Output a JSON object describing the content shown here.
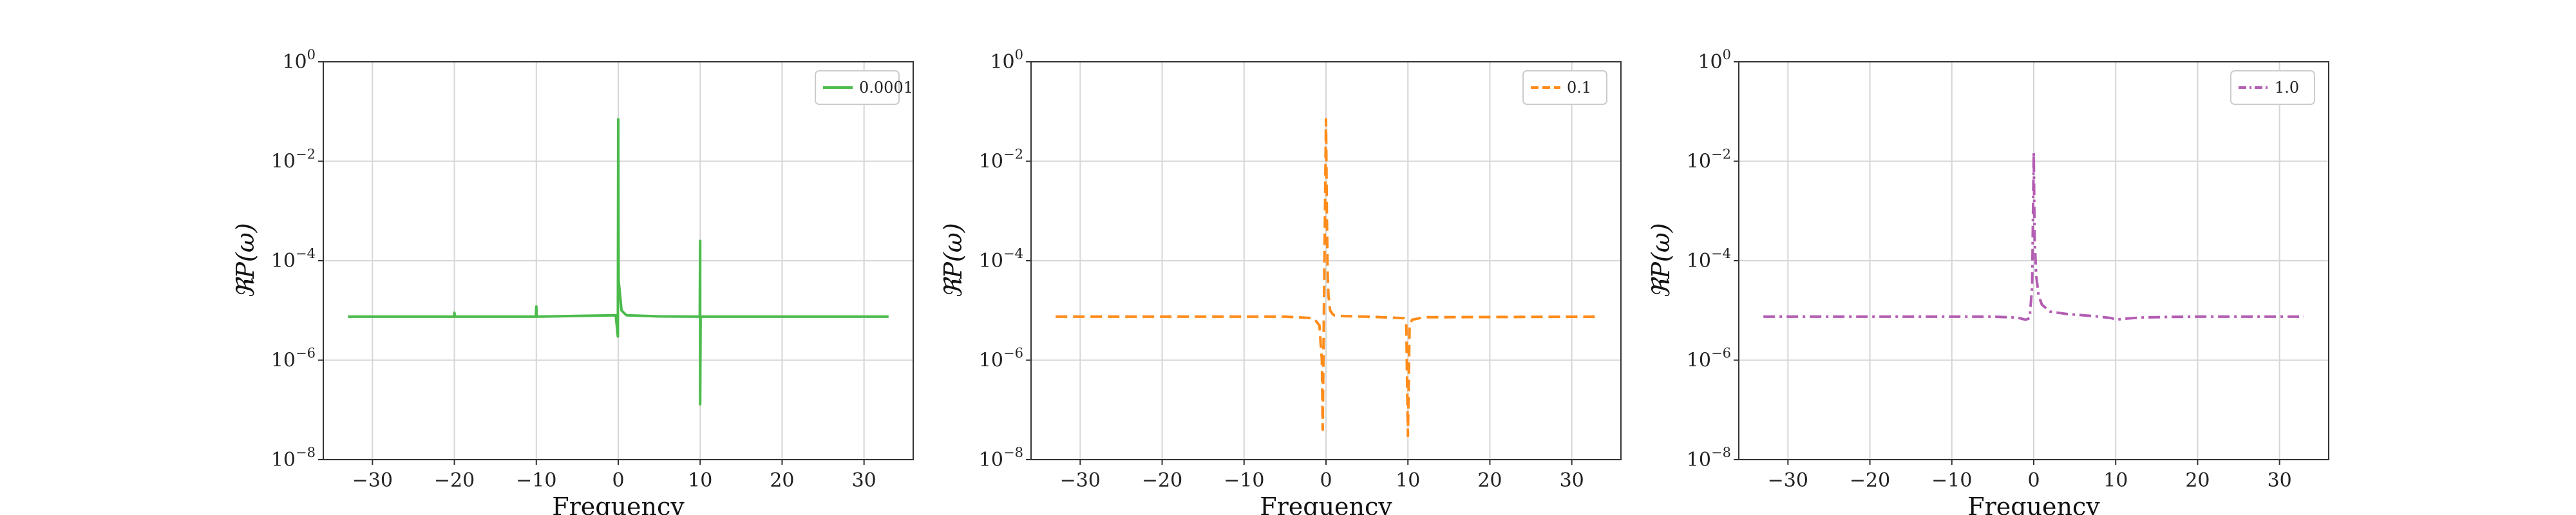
{
  "figure": {
    "background": "#ffffff"
  },
  "chart_data": [
    {
      "type": "line",
      "xlabel": "Frequency",
      "ylabel": "ℜP(ω)",
      "xlim": [
        -36,
        36
      ],
      "ylim": [
        1e-08,
        1
      ],
      "yscale": "log",
      "grid": true,
      "legend_position": "top-right",
      "xticks": [
        -30,
        -20,
        -10,
        0,
        10,
        20,
        30
      ],
      "yticks": [
        {
          "base": "10",
          "exp": "-8"
        },
        {
          "base": "10",
          "exp": "-6"
        },
        {
          "base": "10",
          "exp": "-4"
        },
        {
          "base": "10",
          "exp": "-2"
        },
        {
          "base": "10",
          "exp": "0"
        }
      ],
      "series": [
        {
          "name": "0.0001",
          "color": "#4cbb4c",
          "dash": "solid",
          "x": [
            -33,
            -20.05,
            -20,
            -19.95,
            -10.05,
            -10,
            -9.95,
            -0.3,
            -0.05,
            0,
            0.05,
            0.4,
            1,
            5,
            9.95,
            10,
            10,
            10.05,
            20,
            33
          ],
          "y": [
            7.5e-06,
            7.5e-06,
            9e-06,
            7.5e-06,
            7.5e-06,
            1.2e-05,
            7.5e-06,
            8e-06,
            3e-06,
            0.07,
            4e-05,
            1e-05,
            8e-06,
            7.6e-06,
            7.5e-06,
            0.00025,
            1.3e-07,
            7.5e-06,
            7.5e-06,
            7.5e-06
          ]
        }
      ]
    },
    {
      "type": "line",
      "xlabel": "Frequency",
      "ylabel": "ℜP(ω)",
      "xlim": [
        -36,
        36
      ],
      "ylim": [
        1e-08,
        1
      ],
      "yscale": "log",
      "grid": true,
      "legend_position": "top-right",
      "xticks": [
        -30,
        -20,
        -10,
        0,
        10,
        20,
        30
      ],
      "yticks": [
        {
          "base": "10",
          "exp": "-8"
        },
        {
          "base": "10",
          "exp": "-6"
        },
        {
          "base": "10",
          "exp": "-4"
        },
        {
          "base": "10",
          "exp": "-2"
        },
        {
          "base": "10",
          "exp": "0"
        }
      ],
      "series": [
        {
          "name": "0.1",
          "color": "#ff8c1a",
          "dash": "dashed",
          "x": [
            -33,
            -5,
            -1.5,
            -0.8,
            -0.5,
            -0.4,
            -0.3,
            0,
            0.1,
            0.2,
            0.3,
            0.5,
            0.8,
            1,
            2,
            5,
            9.5,
            9.8,
            10,
            10.2,
            10.5,
            12,
            33
          ],
          "y": [
            7.5e-06,
            7.5e-06,
            7e-06,
            5e-06,
            1e-06,
            4e-08,
            2e-06,
            0.07,
            0.001,
            6e-05,
            2e-05,
            1e-05,
            8.5e-06,
            8e-06,
            7.7e-06,
            7.5e-06,
            7e-06,
            5e-06,
            3e-08,
            5e-06,
            6.5e-06,
            7.3e-06,
            7.5e-06
          ]
        }
      ]
    },
    {
      "type": "line",
      "xlabel": "Frequency",
      "ylabel": "ℜP(ω)",
      "xlim": [
        -36,
        36
      ],
      "ylim": [
        1e-08,
        1
      ],
      "yscale": "log",
      "grid": true,
      "legend_position": "top-right",
      "xticks": [
        -30,
        -20,
        -10,
        0,
        10,
        20,
        30
      ],
      "yticks": [
        {
          "base": "10",
          "exp": "-8"
        },
        {
          "base": "10",
          "exp": "-6"
        },
        {
          "base": "10",
          "exp": "-4"
        },
        {
          "base": "10",
          "exp": "-2"
        },
        {
          "base": "10",
          "exp": "0"
        }
      ],
      "series": [
        {
          "name": "1.0",
          "color": "#b35db3",
          "dash": "dashdot",
          "x": [
            -33,
            -10,
            -5,
            -2,
            -1,
            -0.5,
            -0.2,
            0,
            0.1,
            0.3,
            0.6,
            1,
            2,
            4,
            6,
            8,
            9.5,
            10,
            11,
            13,
            16,
            20,
            33
          ],
          "y": [
            7.5e-06,
            7.5e-06,
            7.5e-06,
            7.2e-06,
            6.5e-06,
            7e-06,
            3e-05,
            0.015,
            0.0003,
            5e-05,
            2e-05,
            1.3e-05,
            9.5e-06,
            8.5e-06,
            8e-06,
            7.5e-06,
            7e-06,
            6.5e-06,
            6.8e-06,
            7.2e-06,
            7.4e-06,
            7.5e-06,
            7.5e-06
          ]
        }
      ]
    }
  ]
}
